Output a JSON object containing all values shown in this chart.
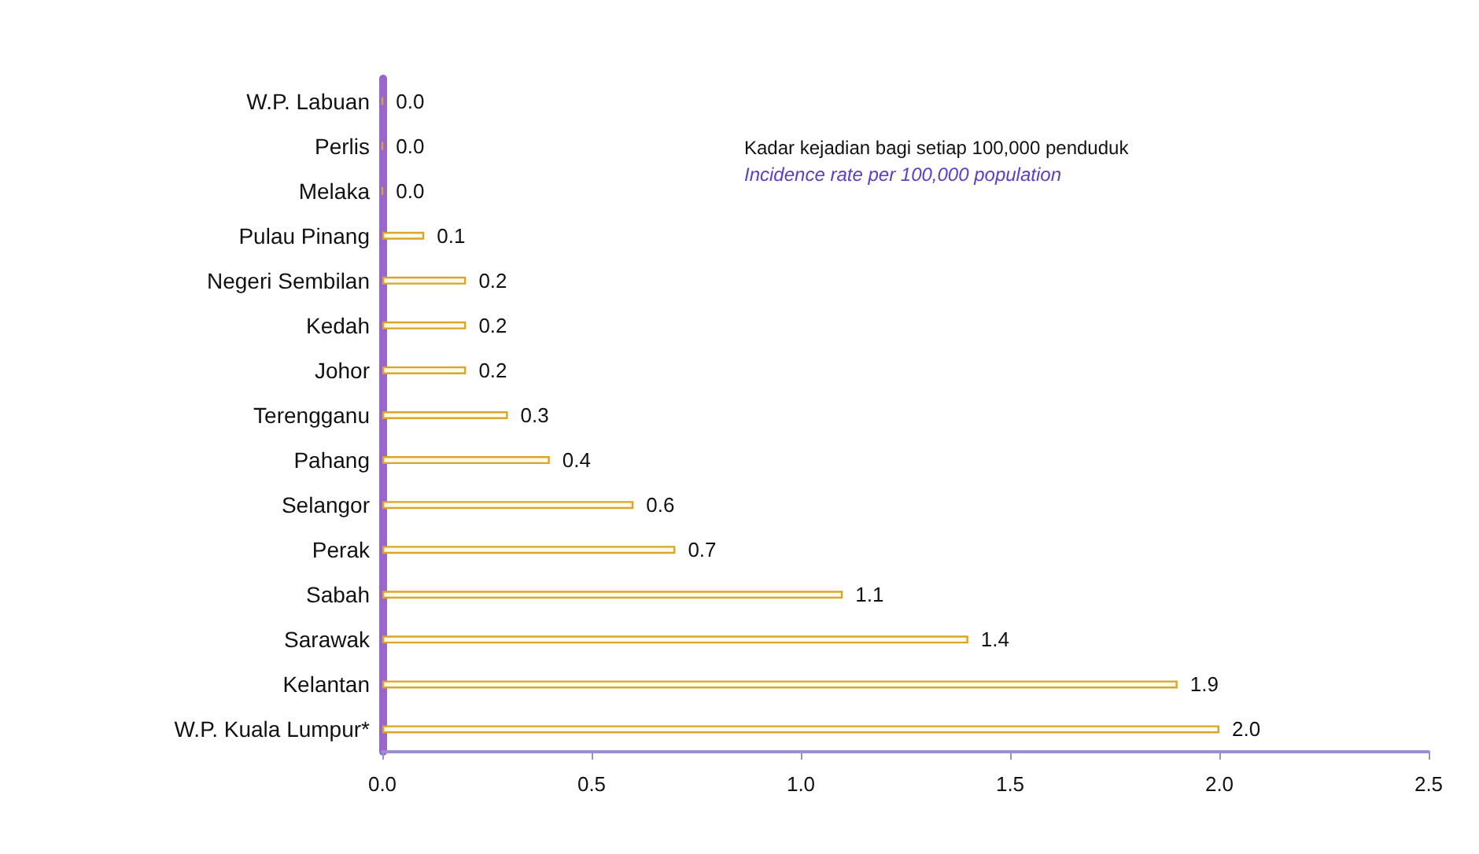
{
  "chart_data": {
    "type": "bar",
    "orientation": "horizontal",
    "categories": [
      "W.P. Labuan",
      "Perlis",
      "Melaka",
      "Pulau Pinang",
      "Negeri Sembilan",
      "Kedah",
      "Johor",
      "Terengganu",
      "Pahang",
      "Selangor",
      "Perak",
      "Sabah",
      "Sarawak",
      "Kelantan",
      "W.P. Kuala Lumpur*"
    ],
    "values": [
      0.0,
      0.0,
      0.0,
      0.1,
      0.2,
      0.2,
      0.2,
      0.3,
      0.4,
      0.6,
      0.7,
      1.1,
      1.4,
      1.9,
      2.0
    ],
    "value_labels": [
      "0.0",
      "0.0",
      "0.0",
      "0.1",
      "0.2",
      "0.2",
      "0.2",
      "0.3",
      "0.4",
      "0.6",
      "0.7",
      "1.1",
      "1.4",
      "1.9",
      "2.0"
    ],
    "color": "#d9a52a",
    "xlim": [
      0,
      2.5
    ],
    "xticks": [
      {
        "value": 0,
        "label": "0.0"
      },
      {
        "value": 0.5,
        "label": "0.5"
      },
      {
        "value": 1,
        "label": "1.0"
      },
      {
        "value": 1.5,
        "label": "1.5"
      },
      {
        "value": 2,
        "label": "2.0"
      },
      {
        "value": 2.5,
        "label": "2.5"
      }
    ],
    "annotations": [
      "Kadar kejadian bagi setiap 100,000 penduduk",
      "Incidence rate per 100,000 population"
    ],
    "grid": false
  }
}
